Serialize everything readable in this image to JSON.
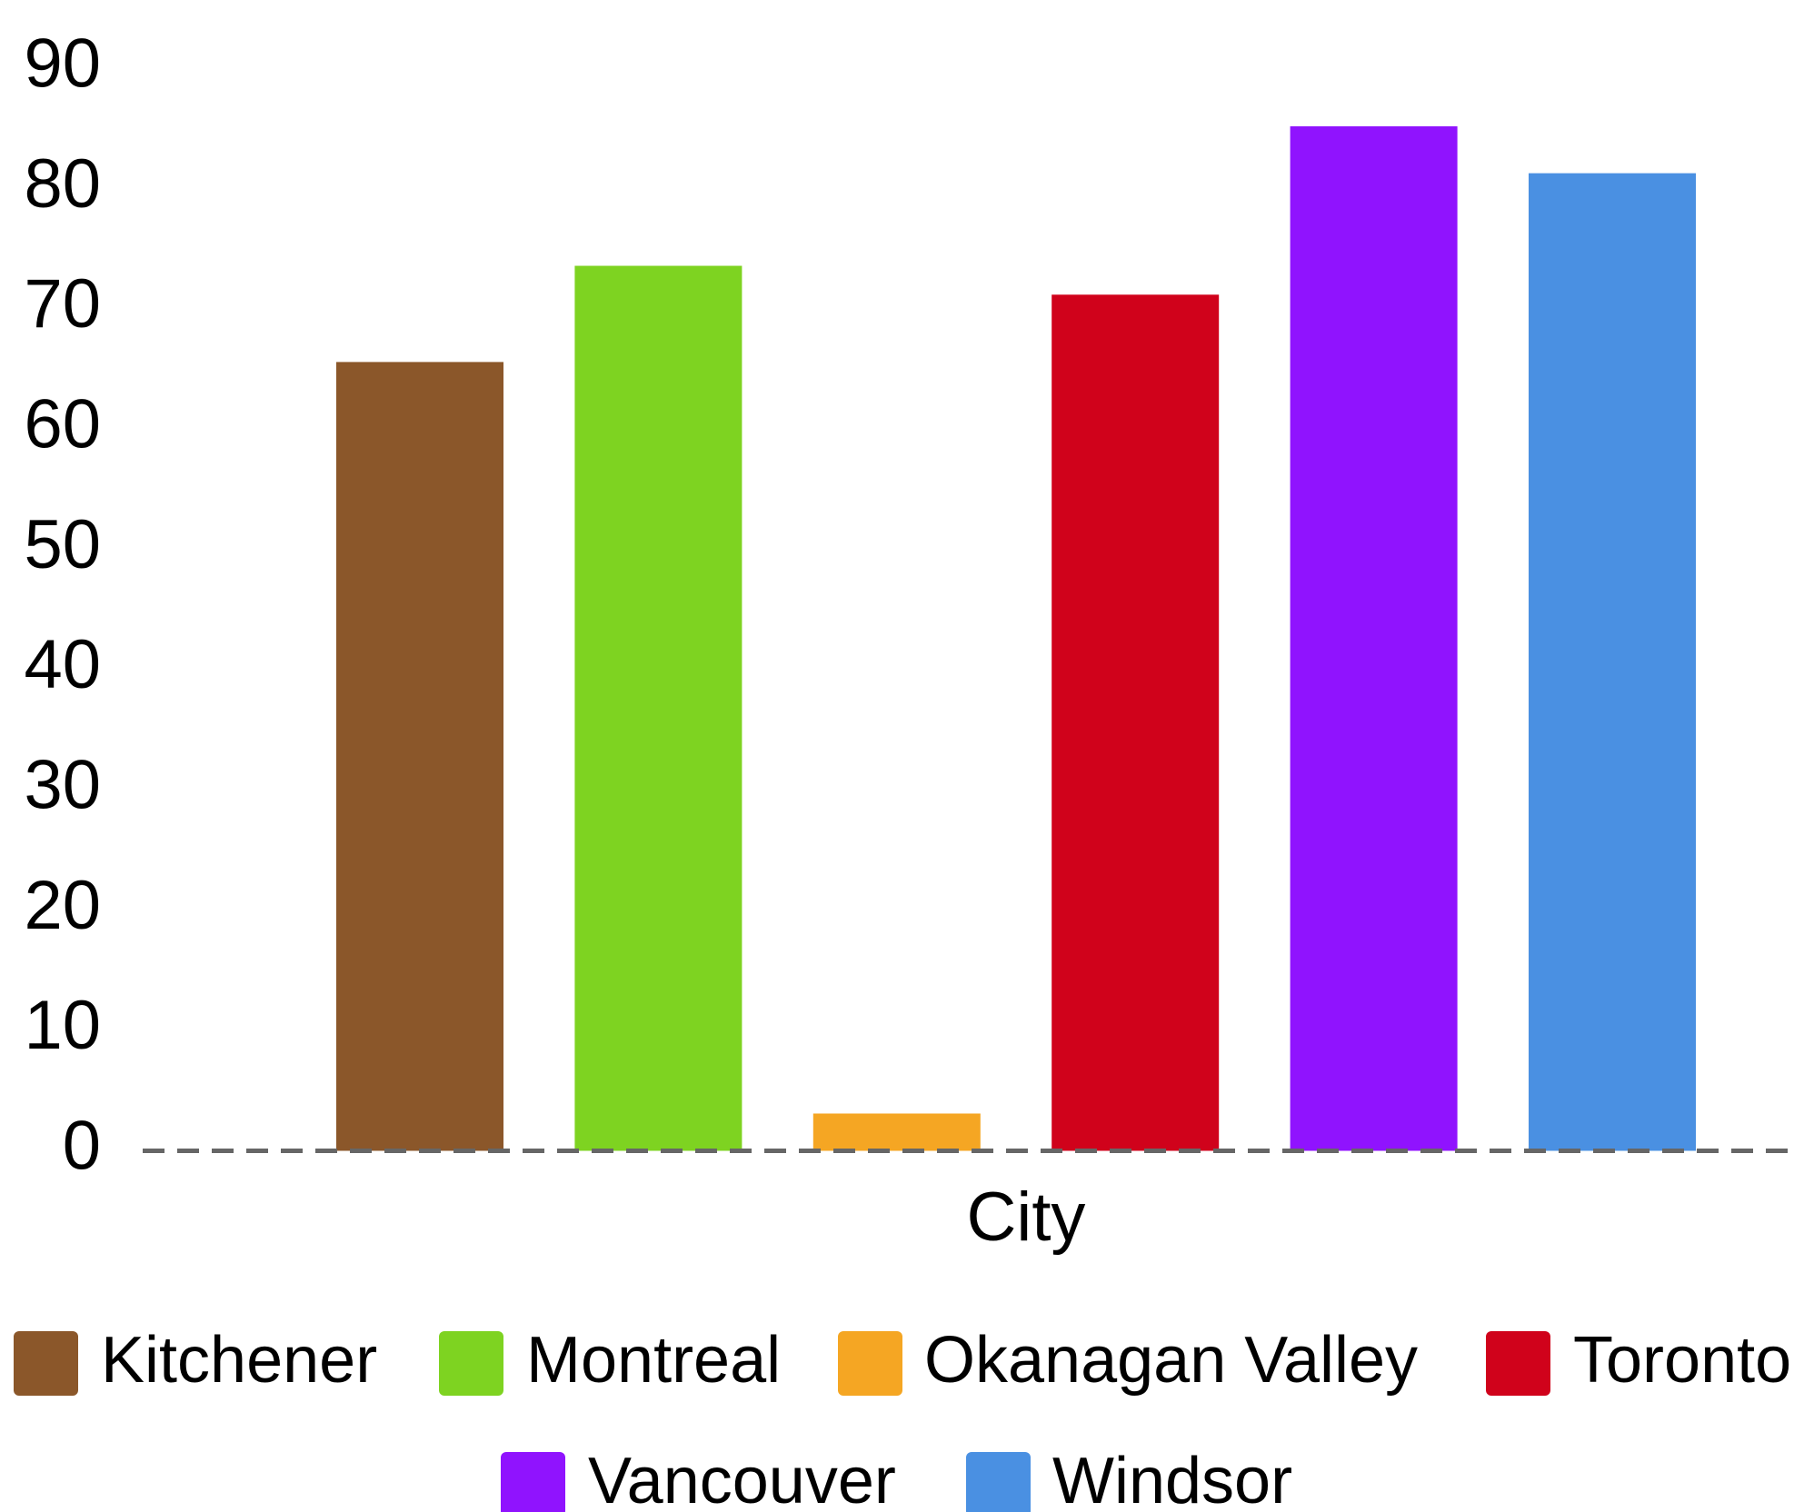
{
  "chart_data": {
    "type": "bar",
    "xlabel": "City",
    "series": [
      {
        "name": "Kitchener",
        "color": "#8b572a",
        "values": [
          65.6
        ]
      },
      {
        "name": "Montreal",
        "color": "#7ed321",
        "values": [
          73.6
        ]
      },
      {
        "name": "Okanagan Valley",
        "color": "#f5a623",
        "values": [
          3.1
        ]
      },
      {
        "name": "Toronto",
        "color": "#d0021b",
        "values": [
          71.2
        ]
      },
      {
        "name": "Vancouver",
        "color": "#9013fe",
        "values": [
          85.2
        ]
      },
      {
        "name": "Windsor",
        "color": "#4a90e2",
        "values": [
          81.3
        ]
      }
    ],
    "ylim": [
      0,
      90
    ],
    "yticks": [
      0,
      10,
      20,
      30,
      40,
      50,
      60,
      70,
      80,
      90
    ],
    "grid": false,
    "legend": "bottom"
  }
}
